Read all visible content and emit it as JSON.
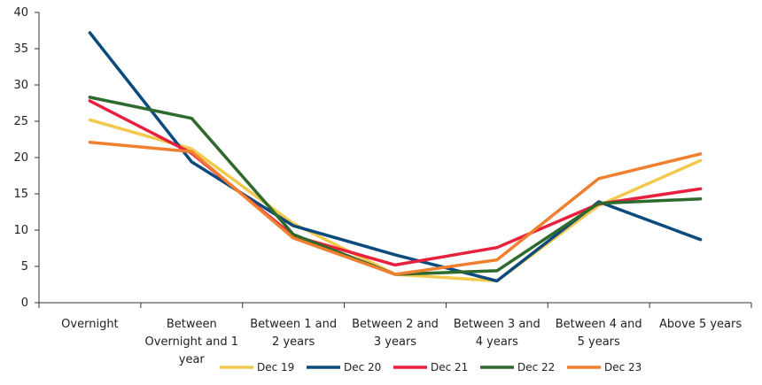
{
  "chart_data": {
    "type": "line",
    "categories": [
      [
        "Overnight"
      ],
      [
        "Between",
        "Overnight and 1",
        "year"
      ],
      [
        "Between 1 and",
        "2 years"
      ],
      [
        "Between 2 and",
        "3 years"
      ],
      [
        "Between 3 and",
        "4 years"
      ],
      [
        "Between 4 and",
        "5 years"
      ],
      [
        "Above  5 years"
      ]
    ],
    "ylim": [
      0,
      40
    ],
    "yticks": [
      0,
      5,
      10,
      15,
      20,
      25,
      30,
      35,
      40
    ],
    "grid": false,
    "legend_position": "bottom",
    "series": [
      {
        "name": "Dec 19",
        "color": "#F2C94C",
        "values": [
          25.2,
          21.2,
          10.9,
          3.9,
          3.0,
          13.4,
          19.6
        ]
      },
      {
        "name": "Dec 20",
        "color": "#0B4A7D",
        "values": [
          37.2,
          19.4,
          10.6,
          6.6,
          3.0,
          13.9,
          8.7
        ]
      },
      {
        "name": "Dec 21",
        "color": "#E8203E",
        "values": [
          27.8,
          20.6,
          9.2,
          5.2,
          7.6,
          13.6,
          15.7
        ]
      },
      {
        "name": "Dec 22",
        "color": "#2E6A2E",
        "values": [
          28.3,
          25.4,
          9.4,
          3.9,
          4.4,
          13.7,
          14.3
        ]
      },
      {
        "name": "Dec 23",
        "color": "#F08030",
        "values": [
          22.1,
          20.8,
          8.9,
          3.9,
          5.9,
          17.1,
          20.5
        ]
      }
    ]
  }
}
